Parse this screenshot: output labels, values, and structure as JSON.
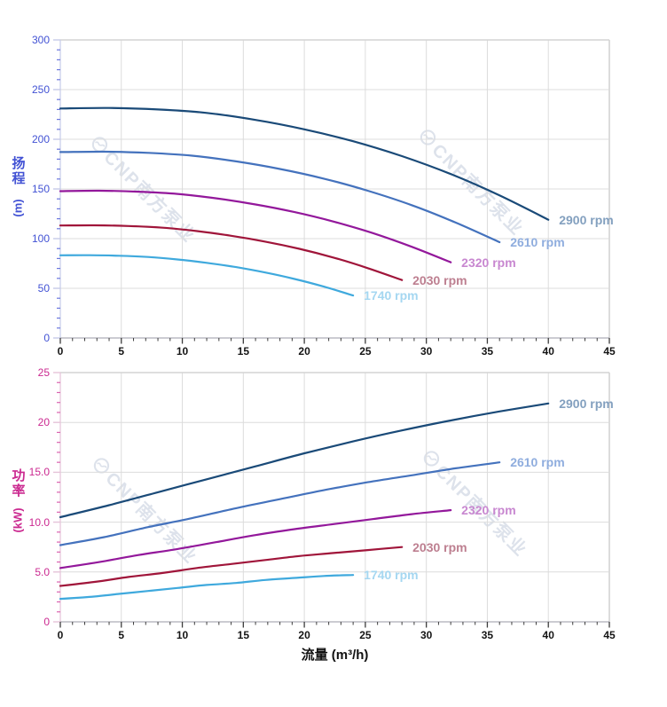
{
  "watermark": {
    "text": "CNP南方泵业"
  },
  "colors": {
    "grid": "#dcdcdc",
    "plot_border": "#d4d4d4",
    "bottom_axis_line": "#9a9aa5",
    "x_tick": "#3c3c3c",
    "watermark": "#c7d0de"
  },
  "chart_data": [
    {
      "type": "line",
      "title": "",
      "xlabel": "流量 (m³/h)",
      "ylabel": "扬程 (m)",
      "ylabel_chars": [
        "扬",
        "程"
      ],
      "ylabel_unit": "(m)",
      "xlim": [
        0,
        45
      ],
      "ylim": [
        0,
        300
      ],
      "grid": true,
      "legend_position": "curve-end-labels",
      "tick_text_color": "#4252d4",
      "minor_tick_color": "#6b77dd",
      "major_tick_color": "#c6cbe8",
      "axis_line_color": "#c6cbe8",
      "x_ticks": [
        {
          "v": 0,
          "label": "0"
        },
        {
          "v": 5,
          "label": "5"
        },
        {
          "v": 10,
          "label": "10"
        },
        {
          "v": 15,
          "label": "15"
        },
        {
          "v": 20,
          "label": "20"
        },
        {
          "v": 25,
          "label": "25"
        },
        {
          "v": 30,
          "label": "30"
        },
        {
          "v": 35,
          "label": "35"
        },
        {
          "v": 40,
          "label": "40"
        },
        {
          "v": 45,
          "label": "45"
        }
      ],
      "x_minor_step": 1,
      "y_ticks": [
        {
          "v": 0,
          "label": "0"
        },
        {
          "v": 50,
          "label": "50"
        },
        {
          "v": 100,
          "label": "100"
        },
        {
          "v": 150,
          "label": "150"
        },
        {
          "v": 200,
          "label": "200"
        },
        {
          "v": 250,
          "label": "250"
        },
        {
          "v": 300,
          "label": "300"
        }
      ],
      "y_minor_step": 10,
      "series": [
        {
          "name": "2900 rpm",
          "color": "#1a4a78",
          "label_color": "#83a0bf",
          "x": [
            0,
            4,
            8,
            12,
            16,
            20,
            24,
            28,
            32,
            36,
            40
          ],
          "y": [
            231,
            231.5,
            230,
            226.5,
            219.5,
            210,
            198,
            183,
            165,
            143.5,
            119
          ]
        },
        {
          "name": "2610 rpm",
          "color": "#4472bd",
          "label_color": "#8fadde",
          "x": [
            0,
            3.6,
            7.2,
            10.8,
            14.4,
            18,
            21.6,
            25.2,
            28.8,
            32.4,
            36
          ],
          "y": [
            187.1,
            187.5,
            186.3,
            183.5,
            177.8,
            170.1,
            160.4,
            148.2,
            133.7,
            116.2,
            96.4
          ]
        },
        {
          "name": "2320 rpm",
          "color": "#93189b",
          "label_color": "#c887d0",
          "x": [
            0,
            3.2,
            6.4,
            9.6,
            12.8,
            16,
            19.2,
            22.4,
            25.6,
            28.8,
            32
          ],
          "y": [
            147.8,
            148.2,
            147.2,
            145,
            140.5,
            134.4,
            126.7,
            117.1,
            105.6,
            91.8,
            76.2
          ]
        },
        {
          "name": "2030 rpm",
          "color": "#a0153a",
          "label_color": "#bd7f90",
          "x": [
            0,
            2.8,
            5.6,
            8.4,
            11.2,
            14,
            16.8,
            19.6,
            22.4,
            25.2,
            28
          ],
          "y": [
            113.2,
            113.4,
            112.7,
            111,
            107.6,
            102.9,
            97,
            89.7,
            80.9,
            70.3,
            58.3
          ]
        },
        {
          "name": "1740 rpm",
          "color": "#3fa9dd",
          "label_color": "#a5d7f1",
          "x": [
            0,
            2.4,
            4.8,
            7.2,
            9.6,
            12,
            14.4,
            16.8,
            19.2,
            21.6,
            24
          ],
          "y": [
            83.2,
            83.3,
            82.8,
            81.5,
            79,
            75.6,
            71.3,
            65.9,
            59.4,
            51.7,
            42.8
          ]
        }
      ]
    },
    {
      "type": "line",
      "title": "",
      "xlabel": "流量 (m³/h)",
      "ylabel": "功率 (kW)",
      "ylabel_chars": [
        "功",
        "率"
      ],
      "ylabel_unit": "(kW)",
      "xlim": [
        0,
        45
      ],
      "ylim": [
        0,
        25
      ],
      "grid": true,
      "legend_position": "curve-end-labels",
      "tick_text_color": "#cb2990",
      "minor_tick_color": "#da63b0",
      "major_tick_color": "#e6c3d9",
      "axis_line_color": "#e6c3d9",
      "x_ticks": [
        {
          "v": 0,
          "label": "0"
        },
        {
          "v": 5,
          "label": "5"
        },
        {
          "v": 10,
          "label": "10"
        },
        {
          "v": 15,
          "label": "15"
        },
        {
          "v": 20,
          "label": "20"
        },
        {
          "v": 25,
          "label": "25"
        },
        {
          "v": 30,
          "label": "30"
        },
        {
          "v": 35,
          "label": "35"
        },
        {
          "v": 40,
          "label": "40"
        },
        {
          "v": 45,
          "label": "45"
        }
      ],
      "x_minor_step": 1,
      "y_ticks": [
        {
          "v": 0,
          "label": "0"
        },
        {
          "v": 5,
          "label": "5.0"
        },
        {
          "v": 10,
          "label": "10.0"
        },
        {
          "v": 15,
          "label": "15.0"
        },
        {
          "v": 20,
          "label": "20"
        },
        {
          "v": 25,
          "label": "25"
        }
      ],
      "y_minor_step": 1,
      "series": [
        {
          "name": "2900 rpm",
          "color": "#1a4a78",
          "label_color": "#83a0bf",
          "x": [
            0,
            4,
            8,
            12,
            16,
            20,
            24,
            28,
            32,
            36,
            40
          ],
          "y": [
            10.5,
            11.7,
            13,
            14.3,
            15.6,
            16.9,
            18.1,
            19.2,
            20.2,
            21.1,
            21.9
          ]
        },
        {
          "name": "2610 rpm",
          "color": "#4472bd",
          "label_color": "#8fadde",
          "x": [
            0,
            3.6,
            7.2,
            10.8,
            14.4,
            18,
            21.6,
            25.2,
            28.8,
            32.4,
            36
          ],
          "y": [
            7.7,
            8.5,
            9.5,
            10.4,
            11.4,
            12.3,
            13.2,
            14,
            14.7,
            15.4,
            16
          ]
        },
        {
          "name": "2320 rpm",
          "color": "#93189b",
          "label_color": "#c887d0",
          "x": [
            0,
            3.2,
            6.4,
            9.6,
            12.8,
            16,
            19.2,
            22.4,
            25.6,
            28.8,
            32
          ],
          "y": [
            5.4,
            6,
            6.7,
            7.3,
            8,
            8.7,
            9.3,
            9.8,
            10.3,
            10.8,
            11.2
          ]
        },
        {
          "name": "2030 rpm",
          "color": "#a0153a",
          "label_color": "#bd7f90",
          "x": [
            0,
            2.8,
            5.6,
            8.4,
            11.2,
            14,
            16.8,
            19.6,
            22.4,
            25.2,
            28
          ],
          "y": [
            3.6,
            4,
            4.5,
            4.9,
            5.4,
            5.8,
            6.2,
            6.6,
            6.9,
            7.2,
            7.5
          ]
        },
        {
          "name": "1740 rpm",
          "color": "#3fa9dd",
          "label_color": "#a5d7f1",
          "x": [
            0,
            2.4,
            4.8,
            7.2,
            9.6,
            12,
            14.4,
            16.8,
            19.2,
            21.6,
            24
          ],
          "y": [
            2.3,
            2.5,
            2.8,
            3.1,
            3.4,
            3.7,
            3.9,
            4.2,
            4.4,
            4.6,
            4.7
          ]
        }
      ]
    }
  ]
}
